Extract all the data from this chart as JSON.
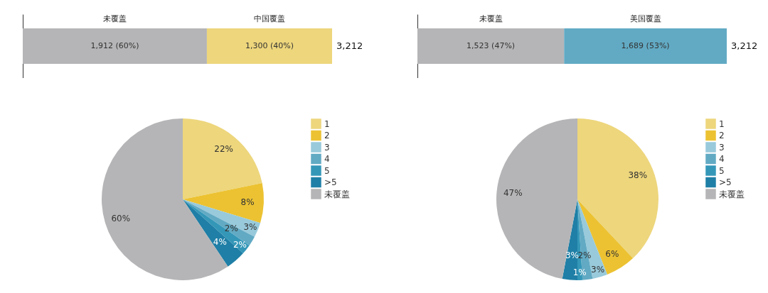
{
  "chart_data": [
    {
      "type": "bar",
      "orientation": "horizontal",
      "stacked": true,
      "categories": [
        null
      ],
      "legend": false,
      "totals": [
        "3,212"
      ],
      "series": [
        {
          "name": "未覆盖",
          "color": "#b5b5b7",
          "values": [
            1912
          ],
          "value_labels": [
            "1,912 (60%)"
          ]
        },
        {
          "name": "中国覆盖",
          "color": "#edd67c",
          "values": [
            1300
          ],
          "value_labels": [
            "1,300 (40%)"
          ]
        }
      ]
    },
    {
      "type": "bar",
      "orientation": "horizontal",
      "stacked": true,
      "categories": [
        null
      ],
      "legend": false,
      "totals": [
        "3,212"
      ],
      "series": [
        {
          "name": "未覆盖",
          "color": "#b5b5b7",
          "values": [
            1523
          ],
          "value_labels": [
            "1,523 (47%)"
          ]
        },
        {
          "name": "美国覆盖",
          "color": "#62aac4",
          "values": [
            1689
          ],
          "value_labels": [
            "1,689 (53%)"
          ]
        }
      ]
    },
    {
      "type": "pie",
      "legend": "right",
      "categories": [
        "1",
        "2",
        "3",
        "4",
        "5",
        ">5",
        "未覆盖"
      ],
      "values": [
        22,
        8,
        3,
        2,
        2,
        4,
        60
      ],
      "value_labels": [
        "22%",
        "8%",
        "3%",
        "2%",
        "2%",
        "4%",
        "60%"
      ],
      "colors": [
        "#edd67c",
        "#ecc232",
        "#98cadb",
        "#62aac4",
        "#3497b8",
        "#1f7fa6",
        "#b5b5b7"
      ]
    },
    {
      "type": "pie",
      "legend": "right",
      "categories": [
        "1",
        "2",
        "3",
        "4",
        "5",
        ">5",
        "未覆盖"
      ],
      "values": [
        38,
        6,
        3,
        2,
        1,
        3,
        47
      ],
      "value_labels": [
        "38%",
        "6%",
        "3%",
        "2%",
        "1%",
        "3%",
        "47%"
      ],
      "colors": [
        "#edd67c",
        "#ecc232",
        "#98cadb",
        "#62aac4",
        "#3497b8",
        "#1f7fa6",
        "#b5b5b7"
      ]
    }
  ]
}
